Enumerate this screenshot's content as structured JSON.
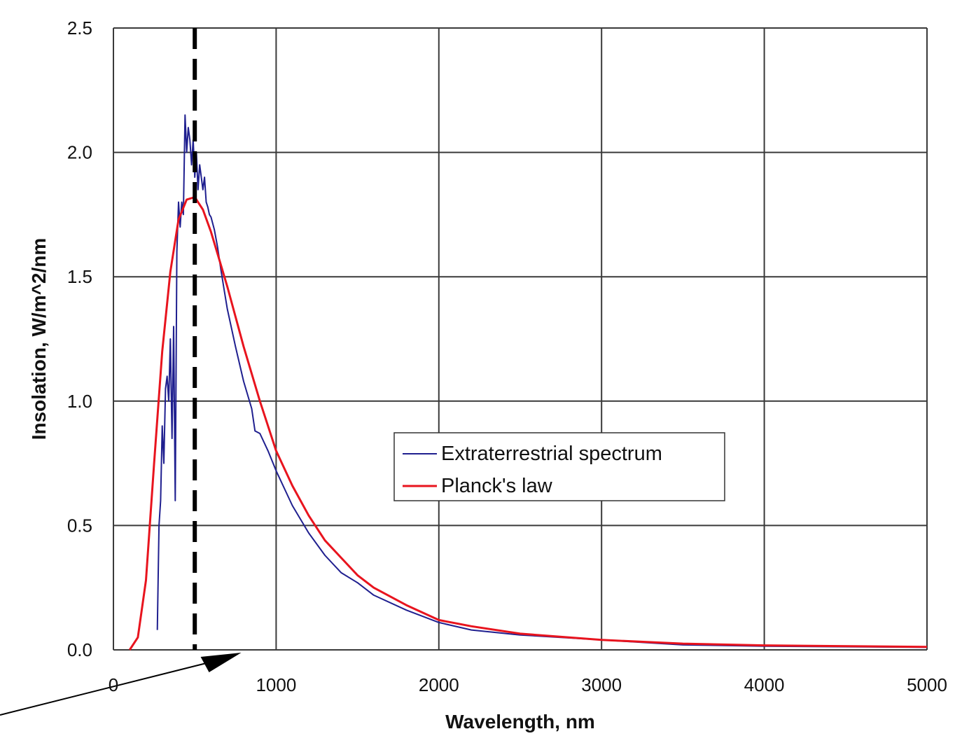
{
  "chart_data": {
    "type": "line",
    "xlabel": "Wavelength, nm",
    "ylabel": "Insolation, W/m^2/nm",
    "xlim": [
      0,
      5000
    ],
    "ylim": [
      0,
      2.5
    ],
    "x_ticks": [
      "0",
      "1000",
      "2000",
      "3000",
      "4000",
      "5000"
    ],
    "y_ticks": [
      "0.0",
      "0.5",
      "1.0",
      "1.5",
      "2.0",
      "2.5"
    ],
    "grid": true,
    "legend_position": "center-right",
    "series": [
      {
        "name": "Extraterrestrial spectrum",
        "color": "#1f1f8f",
        "x": [
          270,
          280,
          290,
          300,
          310,
          320,
          330,
          340,
          350,
          360,
          370,
          380,
          390,
          400,
          410,
          420,
          430,
          440,
          450,
          460,
          470,
          480,
          490,
          500,
          510,
          520,
          530,
          540,
          550,
          560,
          570,
          580,
          590,
          600,
          620,
          640,
          660,
          680,
          700,
          750,
          800,
          850,
          870,
          900,
          950,
          1000,
          1100,
          1200,
          1300,
          1400,
          1500,
          1600,
          1800,
          2000,
          2200,
          2500,
          3000,
          3500,
          4000,
          5000
        ],
        "y": [
          0.08,
          0.5,
          0.6,
          0.9,
          0.75,
          1.05,
          1.1,
          1.0,
          1.25,
          0.85,
          1.3,
          0.6,
          1.6,
          1.8,
          1.7,
          1.8,
          1.75,
          2.15,
          2.0,
          2.1,
          2.05,
          1.95,
          2.05,
          1.9,
          2.0,
          1.85,
          1.95,
          1.9,
          1.85,
          1.9,
          1.8,
          1.78,
          1.75,
          1.74,
          1.69,
          1.62,
          1.53,
          1.45,
          1.37,
          1.22,
          1.08,
          0.97,
          0.88,
          0.87,
          0.8,
          0.72,
          0.58,
          0.47,
          0.38,
          0.31,
          0.27,
          0.22,
          0.16,
          0.11,
          0.08,
          0.06,
          0.04,
          0.02,
          0.015,
          0.01
        ]
      },
      {
        "name": "Planck's law",
        "color": "#e8141e",
        "x": [
          100,
          150,
          200,
          250,
          300,
          350,
          400,
          450,
          500,
          550,
          600,
          650,
          700,
          750,
          800,
          900,
          1000,
          1100,
          1200,
          1300,
          1400,
          1500,
          1600,
          1800,
          2000,
          2200,
          2500,
          3000,
          3500,
          4000,
          5000
        ],
        "y": [
          0.0,
          0.05,
          0.28,
          0.75,
          1.2,
          1.52,
          1.73,
          1.81,
          1.82,
          1.77,
          1.68,
          1.57,
          1.46,
          1.34,
          1.22,
          1.0,
          0.8,
          0.66,
          0.54,
          0.44,
          0.37,
          0.3,
          0.25,
          0.18,
          0.12,
          0.095,
          0.065,
          0.04,
          0.025,
          0.018,
          0.012
        ]
      }
    ],
    "annotations": [
      {
        "type": "dashed-vertical-line",
        "x": 500,
        "color": "#000000"
      },
      {
        "type": "arrow",
        "points_to_x": 450,
        "points_to_y": 0.0,
        "color": "#000000"
      }
    ]
  }
}
